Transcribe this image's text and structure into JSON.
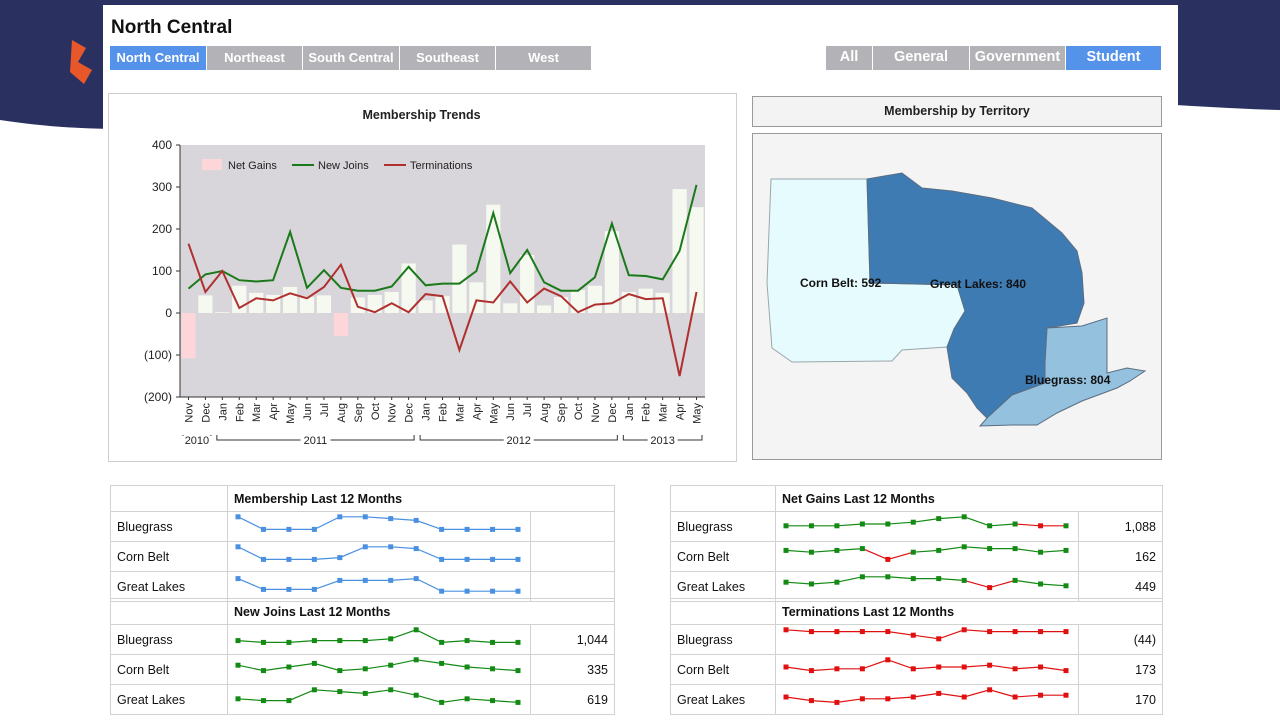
{
  "page_title": "North Central",
  "region_tabs": [
    {
      "label": "North Central",
      "active": true
    },
    {
      "label": "Northeast",
      "active": false
    },
    {
      "label": "South Central",
      "active": false
    },
    {
      "label": "Southeast",
      "active": false
    },
    {
      "label": "West",
      "active": false
    }
  ],
  "segment_tabs": [
    {
      "label": "All",
      "active": false
    },
    {
      "label": "General",
      "active": false
    },
    {
      "label": "Government",
      "active": false
    },
    {
      "label": "Student",
      "active": true
    }
  ],
  "colors": {
    "accent": "#5592ea",
    "tab_inactive": "#b3b3b7",
    "new_joins": "#1a7a1a",
    "terminations": "#b03030",
    "net_gains_pos": "#f5f9f0",
    "net_gains_neg": "#fcd6d8",
    "plot_bg": "#d8d6da",
    "spark_blue": "#4a90e2",
    "spark_green": "#138a13",
    "spark_red": "#e01010"
  },
  "trends": {
    "title": "Membership Trends",
    "chart_data": {
      "type": "line",
      "categories": [
        "Nov",
        "Dec",
        "Jan",
        "Feb",
        "Mar",
        "Apr",
        "May",
        "Jun",
        "Jul",
        "Aug",
        "Sep",
        "Oct",
        "Nov",
        "Dec",
        "Jan",
        "Feb",
        "Mar",
        "Apr",
        "May",
        "Jun",
        "Jul",
        "Aug",
        "Sep",
        "Oct",
        "Nov",
        "Dec",
        "Jan",
        "Feb",
        "Mar",
        "Apr",
        "May"
      ],
      "year_groups": [
        {
          "label": "2010",
          "start": 0,
          "end": 1
        },
        {
          "label": "2011",
          "start": 2,
          "end": 13
        },
        {
          "label": "2012",
          "start": 14,
          "end": 25
        },
        {
          "label": "2013",
          "start": 26,
          "end": 30
        }
      ],
      "ylim": [
        -200,
        400
      ],
      "yticks": [
        400,
        300,
        200,
        100,
        0,
        -100,
        -200
      ],
      "ytick_labels": [
        "400",
        "300",
        "200",
        "100",
        "0",
        "(100)",
        "(200)"
      ],
      "legend_position": "top-left",
      "series": [
        {
          "name": "Net Gains",
          "type": "bar",
          "values": [
            -108,
            42,
            2,
            65,
            48,
            43,
            62,
            38,
            42,
            -55,
            37,
            43,
            50,
            118,
            30,
            40,
            163,
            73,
            258,
            23,
            138,
            18,
            38,
            55,
            65,
            195,
            50,
            58,
            48,
            295,
            252
          ]
        },
        {
          "name": "New Joins",
          "type": "line",
          "values": [
            58,
            92,
            100,
            78,
            75,
            78,
            193,
            60,
            102,
            60,
            53,
            53,
            63,
            110,
            66,
            70,
            70,
            100,
            238,
            95,
            150,
            73,
            53,
            53,
            85,
            213,
            90,
            88,
            80,
            148,
            305
          ]
        },
        {
          "name": "Terminations",
          "type": "line",
          "values": [
            165,
            50,
            100,
            12,
            35,
            30,
            47,
            35,
            62,
            115,
            15,
            2,
            23,
            2,
            45,
            40,
            -88,
            30,
            25,
            75,
            25,
            58,
            40,
            2,
            20,
            23,
            45,
            33,
            35,
            -150,
            50
          ]
        }
      ]
    }
  },
  "territory": {
    "title": "Membership by Territory",
    "regions": [
      {
        "name": "Corn Belt",
        "label": "Corn Belt: 592",
        "value": 592,
        "color": "#e6fbfd"
      },
      {
        "name": "Great Lakes",
        "label": "Great Lakes: 840",
        "value": 840,
        "color": "#3e7bb3"
      },
      {
        "name": "Bluegrass",
        "label": "Bluegrass: 804",
        "value": 804,
        "color": "#93c1de"
      }
    ]
  },
  "sparks": [
    {
      "title": "Membership Last 12 Months",
      "color": "blue",
      "rows": [
        {
          "label": "Bluegrass",
          "value": "",
          "values": [
            9,
            2,
            2,
            2,
            9,
            9,
            8,
            7,
            2,
            2,
            2,
            2
          ]
        },
        {
          "label": "Corn Belt",
          "value": "",
          "values": [
            9,
            2,
            2,
            2,
            3,
            9,
            9,
            8,
            2,
            2,
            2,
            2
          ]
        },
        {
          "label": "Great Lakes",
          "value": "",
          "values": [
            8,
            2,
            2,
            2,
            7,
            7,
            7,
            8,
            1,
            1,
            1,
            1
          ]
        }
      ]
    },
    {
      "title": "Net Gains Last 12 Months",
      "color": "mixed",
      "rows": [
        {
          "label": "Bluegrass",
          "value": "1,088",
          "values": [
            4,
            4,
            4,
            5,
            5,
            6,
            8,
            9,
            4,
            5,
            4,
            4
          ],
          "neg": [
            0,
            0,
            0,
            0,
            0,
            0,
            0,
            0,
            0,
            0,
            1,
            0
          ]
        },
        {
          "label": "Corn Belt",
          "value": "162",
          "values": [
            7,
            6,
            7,
            8,
            2,
            6,
            7,
            9,
            8,
            8,
            6,
            7
          ],
          "neg": [
            0,
            0,
            0,
            0,
            1,
            0,
            0,
            0,
            0,
            0,
            0,
            0
          ]
        },
        {
          "label": "Great Lakes",
          "value": "449",
          "values": [
            6,
            5,
            6,
            9,
            9,
            8,
            8,
            7,
            3,
            7,
            5,
            4
          ],
          "neg": [
            0,
            0,
            0,
            0,
            0,
            0,
            0,
            0,
            1,
            0,
            0,
            0
          ]
        }
      ]
    },
    {
      "title": "New Joins Last 12 Months",
      "color": "green",
      "rows": [
        {
          "label": "Bluegrass",
          "value": "1,044",
          "values": [
            3,
            2,
            2,
            3,
            3,
            3,
            4,
            9,
            2,
            3,
            2,
            2
          ]
        },
        {
          "label": "Corn Belt",
          "value": "335",
          "values": [
            6,
            3,
            5,
            7,
            3,
            4,
            6,
            9,
            7,
            5,
            4,
            3
          ]
        },
        {
          "label": "Great Lakes",
          "value": "619",
          "values": [
            4,
            3,
            3,
            9,
            8,
            7,
            9,
            6,
            2,
            4,
            3,
            2
          ]
        }
      ]
    },
    {
      "title": "Terminations Last 12 Months",
      "color": "red",
      "rows": [
        {
          "label": "Bluegrass",
          "value": "(44)",
          "values": [
            9,
            8,
            8,
            8,
            8,
            6,
            4,
            9,
            8,
            8,
            8,
            8
          ]
        },
        {
          "label": "Corn Belt",
          "value": "173",
          "values": [
            5,
            3,
            4,
            4,
            9,
            4,
            5,
            5,
            6,
            4,
            5,
            3
          ]
        },
        {
          "label": "Great Lakes",
          "value": "170",
          "values": [
            5,
            3,
            2,
            4,
            4,
            5,
            7,
            5,
            9,
            5,
            6,
            6
          ]
        }
      ]
    }
  ]
}
